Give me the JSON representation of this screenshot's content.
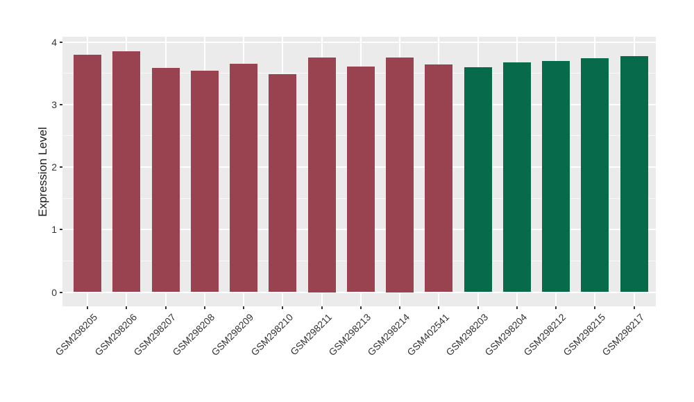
{
  "chart_data": {
    "type": "bar",
    "title": "",
    "xlabel": "",
    "ylabel": "Expression Level",
    "categories": [
      "GSM298205",
      "GSM298206",
      "GSM298207",
      "GSM298208",
      "GSM298209",
      "GSM298210",
      "GSM298211",
      "GSM298213",
      "GSM298214",
      "GSM402541",
      "GSM298203",
      "GSM298204",
      "GSM298212",
      "GSM298215",
      "GSM298217"
    ],
    "values": [
      3.8,
      3.85,
      3.59,
      3.54,
      3.65,
      3.48,
      3.75,
      3.61,
      3.75,
      3.64,
      3.6,
      3.67,
      3.7,
      3.74,
      3.77
    ],
    "groups": [
      "group1",
      "group1",
      "group1",
      "group1",
      "group1",
      "group1",
      "group1",
      "group1",
      "group1",
      "group1",
      "group2",
      "group2",
      "group2",
      "group2",
      "group2"
    ],
    "group_colors": {
      "group1": "#9A4350",
      "group2": "#066A4B"
    },
    "yticks": [
      0,
      1,
      2,
      3,
      4
    ],
    "ytick_labels": [
      "0",
      "1",
      "2",
      "3",
      "4"
    ],
    "ylim": [
      0,
      4.08
    ],
    "grid": "horizontal major+minor, vertical major at category centers",
    "legend_position": "none",
    "x_tick_rotation_deg": 45
  },
  "style": {
    "figure_bg": "#FFFFFF",
    "panel_bg": "#EBEBEB",
    "grid_major_color": "#FFFFFF",
    "grid_minor_color": "rgba(255,255,255,0.7)",
    "tick_label_color": "#333333",
    "axis_title_color": "#1A1A1A",
    "tick_mark_color": "#333333"
  }
}
